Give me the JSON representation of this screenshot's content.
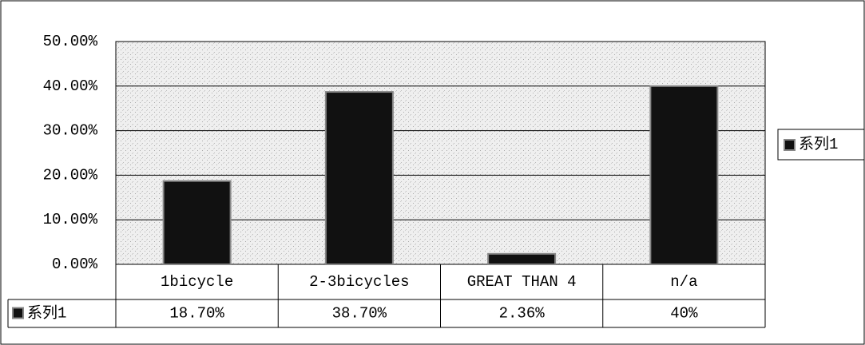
{
  "chart_data": {
    "type": "bar",
    "categories": [
      "1bicycle",
      "2-3bicycles",
      "GREAT THAN 4",
      "n/a"
    ],
    "series": [
      {
        "name": "系列1",
        "color": "#111111",
        "values": [
          18.7,
          38.7,
          2.36,
          40
        ],
        "value_labels": [
          "18.70%",
          "38.70%",
          "2.36%",
          "40%"
        ]
      }
    ],
    "ylim": [
      0,
      50
    ],
    "yticks": [
      {
        "value": 0,
        "label": "0.00%"
      },
      {
        "value": 10,
        "label": "10.00%"
      },
      {
        "value": 20,
        "label": "20.00%"
      },
      {
        "value": 30,
        "label": "30.00%"
      },
      {
        "value": 40,
        "label": "40.00%"
      },
      {
        "value": 50,
        "label": "50.00%"
      }
    ],
    "grid": true,
    "legend": "right",
    "data_table": true
  }
}
